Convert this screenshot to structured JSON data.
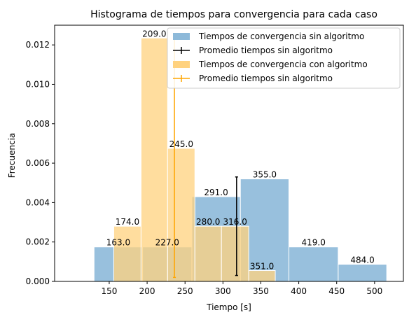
{
  "chart_data": {
    "type": "bar",
    "title": "Histograma de tiempos para convergencia para cada caso",
    "xlabel": "Tiempo [s]",
    "ylabel": "Frecuencia",
    "xlim": [
      78,
      538
    ],
    "ylim": [
      0,
      0.013
    ],
    "x_ticks": [
      150,
      200,
      250,
      300,
      350,
      400,
      450,
      500
    ],
    "y_ticks": [
      0.0,
      0.002,
      0.004,
      0.006,
      0.008,
      0.01,
      0.012
    ],
    "x_tick_labels": [
      "150",
      "200",
      "250",
      "300",
      "350",
      "400",
      "450",
      "500"
    ],
    "y_tick_labels": [
      "0.000",
      "0.002",
      "0.004",
      "0.006",
      "0.008",
      "0.010",
      "0.012"
    ],
    "grid": false,
    "legend_position": "top-right",
    "legend": [
      "Tiempos de convergencia sin algoritmo",
      "Promedio tiempos sin algoritmo",
      "Tiempos de convergencia con algoritmo",
      "Promedio tiempos sin algoritmo"
    ],
    "series": [
      {
        "name": "Tiempos de convergencia sin algoritmo",
        "kind": "histogram",
        "color": "#8db9d9",
        "bins": [
          {
            "x0": 130,
            "x1": 194,
            "density": 0.00175,
            "label": "163.0"
          },
          {
            "x0": 194,
            "x1": 259,
            "density": 0.00175,
            "label": "227.0"
          },
          {
            "x0": 259,
            "x1": 323,
            "density": 0.0043,
            "label": "291.0"
          },
          {
            "x0": 323,
            "x1": 387,
            "density": 0.0052,
            "label": "355.0"
          },
          {
            "x0": 387,
            "x1": 452,
            "density": 0.00175,
            "label": "419.0"
          },
          {
            "x0": 452,
            "x1": 516,
            "density": 0.00087,
            "label": "484.0"
          }
        ]
      },
      {
        "name": "Tiempos de convergencia con algoritmo",
        "kind": "histogram",
        "color": "#ffd27f",
        "bins": [
          {
            "x0": 156,
            "x1": 192,
            "density": 0.0028,
            "label": "174.0"
          },
          {
            "x0": 192,
            "x1": 227,
            "density": 0.01235,
            "label": "209.0"
          },
          {
            "x0": 227,
            "x1": 263,
            "density": 0.00675,
            "label": "245.0"
          },
          {
            "x0": 263,
            "x1": 298,
            "density": 0.0028,
            "label": "280.0"
          },
          {
            "x0": 298,
            "x1": 334,
            "density": 0.0028,
            "label": "316.0"
          },
          {
            "x0": 334,
            "x1": 369,
            "density": 0.00055,
            "label": "351.0"
          }
        ]
      },
      {
        "name": "Promedio tiempos sin algoritmo",
        "kind": "vline",
        "color": "#000000",
        "x": 318,
        "y_range": [
          0.0003,
          0.0053
        ]
      },
      {
        "name": "Promedio tiempos sin algoritmo",
        "kind": "vline",
        "color": "#ffa500",
        "x": 236,
        "y_range": [
          0.0002,
          0.0124
        ]
      }
    ]
  }
}
